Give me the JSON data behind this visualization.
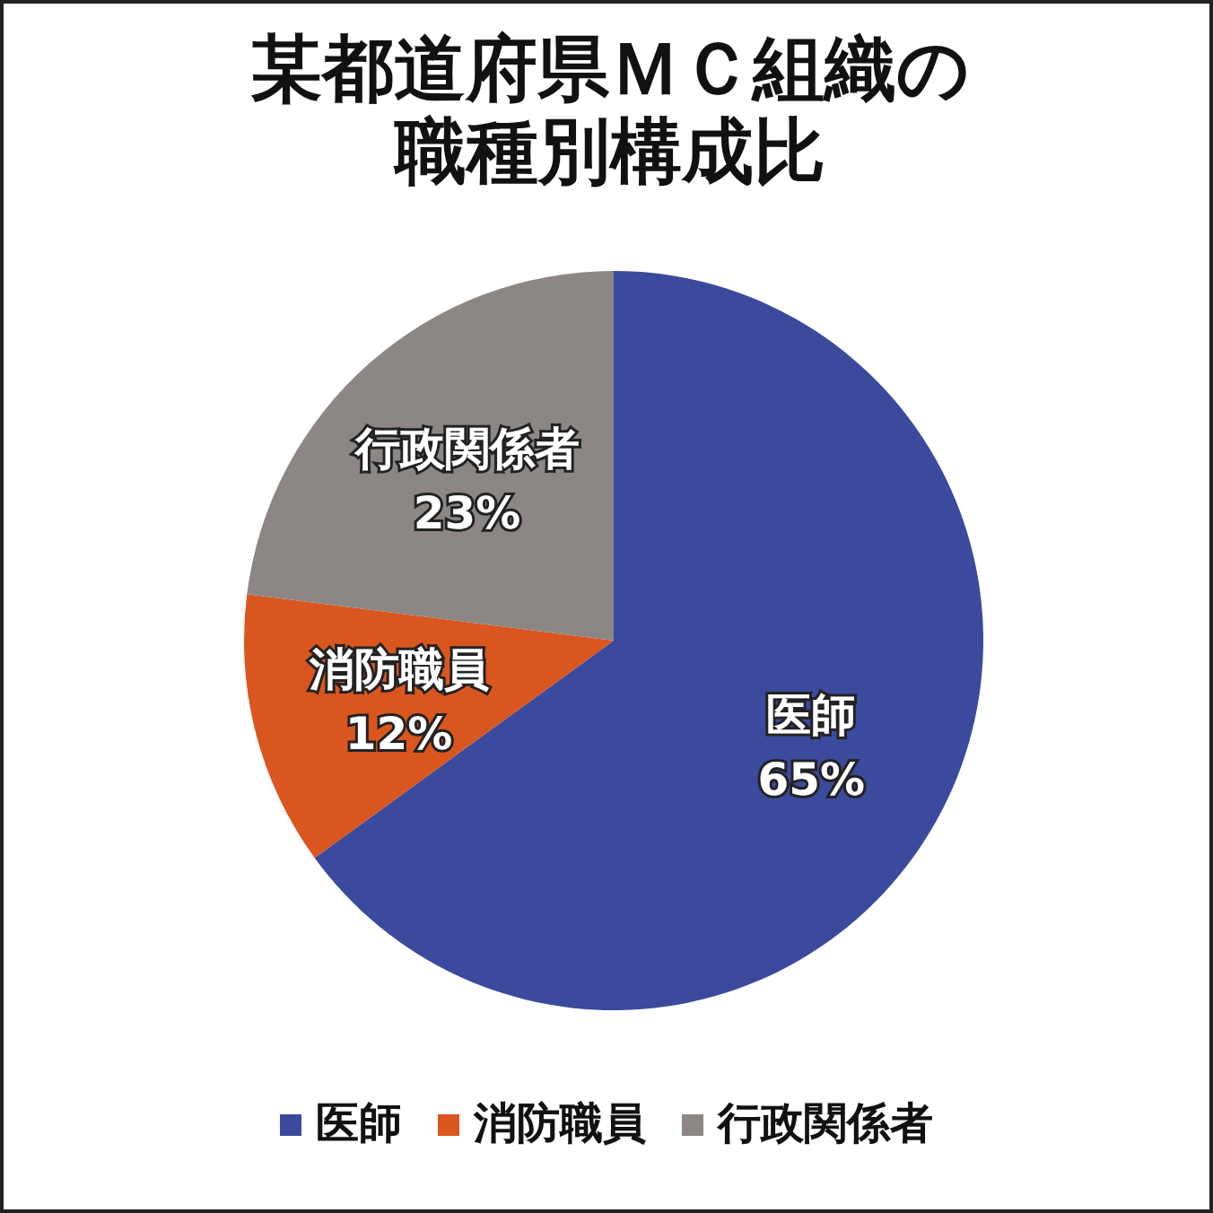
{
  "chart_data": {
    "type": "pie",
    "title": "某都道府県ＭＣ組織の職種別構成比",
    "categories": [
      "医師",
      "消防職員",
      "行政関係者"
    ],
    "values": [
      65,
      12,
      23
    ],
    "value_labels": [
      "65%",
      "12%",
      "23%"
    ],
    "colors": [
      "#3b4a9c",
      "#d9561f",
      "#8c8785"
    ],
    "legend": "bottom"
  }
}
